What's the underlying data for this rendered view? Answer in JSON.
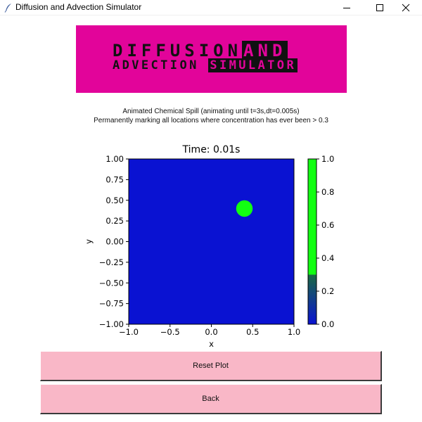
{
  "window": {
    "title": "Diffusion and Advection Simulator"
  },
  "banner": {
    "line1_main": "DIFFUSION",
    "line1_box": "AND",
    "line2_main": "ADVECTION",
    "line2_box": "SIMULATOR",
    "background_color": "#e2049a",
    "text_color": "#111111"
  },
  "description": {
    "line1": "Animated Chemical Spill (animating until t=3s,dt=0.005s)",
    "line2": "Permanently marking all locations where concentration has ever been > 0.3"
  },
  "chart_data": {
    "type": "heatmap",
    "title": "Time: 0.01s",
    "xlabel": "x",
    "ylabel": "y",
    "xlim": [
      -1.0,
      1.0
    ],
    "ylim": [
      -1.0,
      1.0
    ],
    "xticks": [
      "−1.0",
      "−0.5",
      "0.0",
      "0.5",
      "1.0"
    ],
    "yticks": [
      "−1.00",
      "−0.75",
      "−0.50",
      "−0.25",
      "0.00",
      "0.25",
      "0.50",
      "0.75",
      "1.00"
    ],
    "background_value": 0.0,
    "spill": {
      "center_x": 0.4,
      "center_y": 0.4,
      "radius": 0.1,
      "value": 1.0
    },
    "colorbar": {
      "range": [
        0.0,
        1.0
      ],
      "threshold": 0.3,
      "ticks": [
        "0.0",
        "0.2",
        "0.4",
        "0.6",
        "0.8",
        "1.0"
      ],
      "low_color": "#0a12d2",
      "high_color": "#12ff12"
    },
    "grid": false
  },
  "buttons": {
    "reset": "Reset Plot",
    "back": "Back"
  },
  "colors": {
    "button_bg": "#f9b7c7"
  }
}
